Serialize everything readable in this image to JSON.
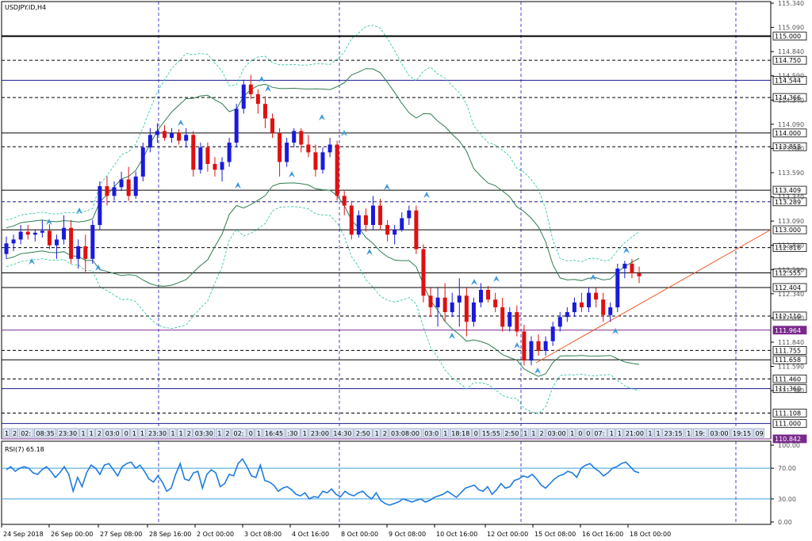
{
  "window": {
    "title": "USDJPY.ID,H4"
  },
  "chart_data": {
    "type": "candlestick",
    "symbol": "USDJPY.ID",
    "timeframe": "H4",
    "ylim": [
      110.842,
      115.34
    ],
    "price_ticks": [
      "115.340",
      "115.090",
      "114.840",
      "114.590",
      "114.340",
      "114.090",
      "113.840",
      "113.590",
      "113.340",
      "113.090",
      "112.840",
      "112.590",
      "112.340",
      "112.090",
      "111.840",
      "111.590",
      "111.340"
    ],
    "levels": [
      {
        "value": 115.0,
        "label": "115.000",
        "style": "solid",
        "color": "#000000",
        "heavy": true
      },
      {
        "value": 114.75,
        "label": "114.750",
        "style": "dashed",
        "color": "#000000"
      },
      {
        "value": 114.544,
        "label": "114.544",
        "style": "solid",
        "color": "#1a1a8c"
      },
      {
        "value": 114.366,
        "label": "114.366",
        "style": "dashed",
        "color": "#000000"
      },
      {
        "value": 114.0,
        "label": "114.000",
        "style": "solid",
        "color": "#000000"
      },
      {
        "value": 113.858,
        "label": "113.858",
        "style": "dashed",
        "color": "#000000"
      },
      {
        "value": 113.409,
        "label": "113.409",
        "style": "solid",
        "color": "#000000"
      },
      {
        "value": 113.289,
        "label": "113.289",
        "style": "dashed",
        "color": "#1a1a8c"
      },
      {
        "value": 113.0,
        "label": "113.000",
        "style": "solid",
        "color": "#000000"
      },
      {
        "value": 112.816,
        "label": "112.816",
        "style": "dashed",
        "color": "#000000"
      },
      {
        "value": 112.555,
        "label": "112.555",
        "style": "solid",
        "color": "#000000",
        "highlight": true
      },
      {
        "value": 112.404,
        "label": "112.404",
        "style": "solid",
        "color": "#000000"
      },
      {
        "value": 112.11,
        "label": "112.110",
        "style": "dashed",
        "color": "#000000"
      },
      {
        "value": 111.964,
        "label": "111.964",
        "style": "solid",
        "color": "#7a2a8c",
        "purple": true
      },
      {
        "value": 111.755,
        "label": "111.755",
        "style": "dashed",
        "color": "#000000"
      },
      {
        "value": 111.658,
        "label": "111.658",
        "style": "solid",
        "color": "#000000"
      },
      {
        "value": 111.46,
        "label": "111.460",
        "style": "dashed",
        "color": "#000000"
      },
      {
        "value": 111.36,
        "label": "111.360",
        "style": "solid",
        "color": "#1a1a8c"
      },
      {
        "value": 111.108,
        "label": "111.108",
        "style": "dashed",
        "color": "#000000"
      },
      {
        "value": 111.0,
        "label": "111.000",
        "style": "solid",
        "color": "#1a1a8c"
      },
      {
        "value": 110.842,
        "label": "110.842",
        "style": "solid",
        "color": "#7a2a8c",
        "purple": true
      }
    ],
    "x_labels": [
      "24 Sep 2018",
      "26 Sep 00:00",
      "27 Sep 08:00",
      "28 Sep 16:00",
      "2 Oct 00:00",
      "3 Oct 08:00",
      "4 Oct 16:00",
      "8 Oct 00:00",
      "9 Oct 08:00",
      "10 Oct 16:00",
      "12 Oct 00:00",
      "15 Oct 08:00",
      "16 Oct 16:00",
      "18 Oct 00:00"
    ],
    "candles": [
      [
        112.75,
        112.93,
        112.7,
        112.86
      ],
      [
        112.86,
        112.95,
        112.78,
        112.9
      ],
      [
        112.9,
        113.05,
        112.85,
        112.98
      ],
      [
        112.98,
        113.05,
        112.9,
        112.95
      ],
      [
        112.95,
        113.0,
        112.88,
        112.97
      ],
      [
        112.97,
        113.1,
        112.92,
        112.99
      ],
      [
        112.99,
        113.06,
        112.8,
        112.84
      ],
      [
        112.84,
        112.95,
        112.7,
        112.9
      ],
      [
        112.9,
        113.15,
        112.85,
        113.02
      ],
      [
        113.02,
        113.1,
        112.65,
        112.7
      ],
      [
        112.7,
        112.9,
        112.6,
        112.83
      ],
      [
        112.83,
        112.95,
        112.55,
        112.7
      ],
      [
        112.7,
        113.1,
        112.65,
        113.05
      ],
      [
        113.05,
        113.5,
        113.0,
        113.45
      ],
      [
        113.45,
        113.55,
        113.25,
        113.35
      ],
      [
        113.35,
        113.5,
        113.3,
        113.44
      ],
      [
        113.44,
        113.6,
        113.4,
        113.52
      ],
      [
        113.52,
        113.65,
        113.3,
        113.35
      ],
      [
        113.35,
        113.6,
        113.32,
        113.55
      ],
      [
        113.55,
        113.9,
        113.5,
        113.85
      ],
      [
        113.85,
        114.05,
        113.8,
        113.98
      ],
      [
        113.98,
        114.1,
        113.9,
        114.02
      ],
      [
        114.02,
        114.08,
        113.92,
        113.95
      ],
      [
        113.95,
        114.05,
        113.9,
        114.0
      ],
      [
        114.0,
        114.04,
        113.88,
        113.92
      ],
      [
        113.92,
        114.05,
        113.85,
        113.98
      ],
      [
        113.98,
        114.02,
        113.55,
        113.62
      ],
      [
        113.62,
        113.9,
        113.58,
        113.85
      ],
      [
        113.85,
        113.9,
        113.6,
        113.68
      ],
      [
        113.68,
        113.75,
        113.55,
        113.62
      ],
      [
        113.62,
        113.75,
        113.5,
        113.7
      ],
      [
        113.7,
        113.95,
        113.65,
        113.9
      ],
      [
        113.9,
        114.3,
        113.85,
        114.25
      ],
      [
        114.25,
        114.55,
        114.2,
        114.5
      ],
      [
        114.5,
        114.6,
        114.35,
        114.4
      ],
      [
        114.4,
        114.45,
        114.2,
        114.3
      ],
      [
        114.3,
        114.38,
        114.05,
        114.15
      ],
      [
        114.15,
        114.2,
        113.95,
        114.0
      ],
      [
        114.0,
        114.05,
        113.55,
        113.7
      ],
      [
        113.7,
        113.95,
        113.65,
        113.9
      ],
      [
        113.9,
        114.05,
        113.85,
        114.02
      ],
      [
        114.02,
        114.05,
        113.8,
        113.88
      ],
      [
        113.88,
        113.98,
        113.75,
        113.8
      ],
      [
        113.8,
        113.88,
        113.55,
        113.62
      ],
      [
        113.62,
        113.85,
        113.58,
        113.8
      ],
      [
        113.8,
        113.95,
        113.75,
        113.88
      ],
      [
        113.88,
        113.92,
        113.3,
        113.35
      ],
      [
        113.35,
        113.4,
        113.15,
        113.25
      ],
      [
        113.25,
        113.3,
        112.9,
        112.95
      ],
      [
        112.95,
        113.2,
        112.92,
        113.15
      ],
      [
        113.15,
        113.22,
        112.98,
        113.05
      ],
      [
        113.05,
        113.35,
        113.0,
        113.25
      ],
      [
        113.25,
        113.32,
        113.0,
        113.05
      ],
      [
        113.05,
        113.1,
        112.88,
        112.95
      ],
      [
        112.95,
        113.05,
        112.85,
        113.0
      ],
      [
        113.0,
        113.18,
        112.98,
        113.12
      ],
      [
        113.12,
        113.25,
        113.05,
        113.2
      ],
      [
        113.2,
        113.25,
        112.75,
        112.8
      ],
      [
        112.8,
        112.85,
        112.25,
        112.32
      ],
      [
        112.32,
        112.4,
        112.1,
        112.2
      ],
      [
        112.2,
        112.4,
        112.0,
        112.3
      ],
      [
        112.3,
        112.45,
        112.05,
        112.15
      ],
      [
        112.15,
        112.35,
        112.1,
        112.25
      ],
      [
        112.25,
        112.5,
        112.0,
        112.32
      ],
      [
        112.32,
        112.4,
        111.9,
        112.05
      ],
      [
        112.05,
        112.3,
        112.0,
        112.25
      ],
      [
        112.25,
        112.45,
        112.2,
        112.38
      ],
      [
        112.38,
        112.42,
        112.25,
        112.28
      ],
      [
        112.28,
        112.35,
        112.15,
        112.2
      ],
      [
        112.2,
        112.3,
        111.95,
        112.0
      ],
      [
        112.0,
        112.2,
        111.95,
        112.15
      ],
      [
        112.15,
        112.22,
        111.9,
        111.95
      ],
      [
        111.95,
        112.02,
        111.6,
        111.65
      ],
      [
        111.65,
        111.9,
        111.6,
        111.85
      ],
      [
        111.85,
        111.92,
        111.7,
        111.75
      ],
      [
        111.75,
        111.9,
        111.7,
        111.85
      ],
      [
        111.85,
        112.05,
        111.8,
        112.0
      ],
      [
        112.0,
        112.15,
        111.95,
        112.1
      ],
      [
        112.1,
        112.2,
        112.05,
        112.15
      ],
      [
        112.15,
        112.3,
        112.1,
        112.25
      ],
      [
        112.25,
        112.35,
        112.15,
        112.2
      ],
      [
        112.2,
        112.4,
        112.15,
        112.35
      ],
      [
        112.35,
        112.4,
        112.2,
        112.28
      ],
      [
        112.28,
        112.35,
        112.05,
        112.12
      ],
      [
        112.12,
        112.25,
        112.05,
        112.2
      ],
      [
        112.2,
        112.65,
        112.15,
        112.6
      ],
      [
        112.6,
        112.68,
        112.5,
        112.65
      ],
      [
        112.65,
        112.7,
        112.5,
        112.55
      ],
      [
        112.55,
        112.62,
        112.45,
        112.52
      ]
    ],
    "indicator": {
      "label": "RSI(7) 65.18",
      "ylim": [
        0,
        100
      ],
      "ticks": [
        "100.00",
        "70.00",
        "30.00",
        "0.00"
      ],
      "levels": [
        70,
        30
      ],
      "last": 65.18
    },
    "rsi": [
      68,
      72,
      66,
      70,
      72,
      70,
      64,
      62,
      68,
      72,
      66,
      58,
      64,
      72,
      62,
      40,
      58,
      46,
      64,
      74,
      70,
      62,
      74,
      76,
      68,
      60,
      72,
      76,
      78,
      70,
      74,
      66,
      56,
      52,
      60,
      52,
      40,
      44,
      62,
      76,
      56,
      54,
      64,
      66,
      44,
      62,
      68,
      64,
      46,
      50,
      62,
      60,
      76,
      82,
      72,
      60,
      58,
      74,
      54,
      52,
      48,
      40,
      44,
      46,
      42,
      36,
      34,
      38,
      30,
      33,
      32,
      40,
      38,
      43,
      36,
      33,
      40,
      36,
      34,
      38,
      40,
      34,
      30,
      38,
      28,
      24,
      22,
      24,
      26,
      30,
      28,
      26,
      28,
      30,
      26,
      28,
      32,
      34,
      36,
      40,
      36,
      32,
      38,
      44,
      46,
      48,
      42,
      40,
      46,
      36,
      42,
      50,
      44,
      46,
      54,
      56,
      60,
      58,
      62,
      56,
      48,
      44,
      50,
      56,
      60,
      62,
      66,
      64,
      58,
      70,
      74,
      76,
      70,
      66,
      60,
      64,
      70,
      72,
      76,
      78,
      72,
      66,
      64
    ]
  },
  "time_strip": [
    "1",
    "2",
    "02:",
    "08:35",
    "23:30",
    "1",
    "1",
    "2",
    "03:0",
    "0",
    "1",
    "1",
    "23:30",
    "1",
    "1",
    "2",
    "03:30",
    "1",
    "2",
    "02:",
    "0",
    "1",
    "16:45",
    ":30",
    "1",
    "23:00",
    "14:30",
    "2:50",
    "1",
    "2",
    "03:08:00",
    "03:0",
    "1",
    "18:18",
    "0",
    "15:55",
    "2:50",
    "1",
    "1",
    "2",
    "03:00",
    "1",
    "0",
    "0",
    "07:",
    "1",
    "1",
    "21:00",
    "1",
    "1",
    "23:15",
    "1",
    "19:",
    "03:00",
    "19:15",
    "09",
    "19:00",
    "18:30"
  ]
}
